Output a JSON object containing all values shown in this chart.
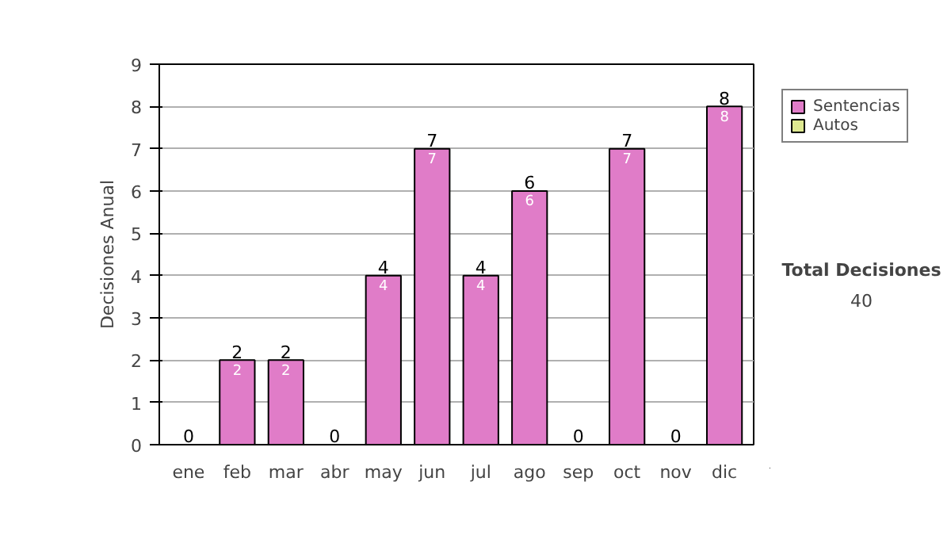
{
  "chart_data": {
    "type": "bar",
    "stacked": true,
    "ylabel": "Decisiones Anual",
    "categories": [
      "ene",
      "feb",
      "mar",
      "abr",
      "may",
      "jun",
      "jul",
      "ago",
      "sep",
      "oct",
      "nov",
      "dic"
    ],
    "series": [
      {
        "name": "Sentencias",
        "color": "#e07cc8",
        "values": [
          0,
          2,
          2,
          0,
          4,
          7,
          4,
          6,
          0,
          7,
          0,
          8
        ],
        "value_labels": [
          null,
          "2",
          "2",
          null,
          "4",
          "7",
          "4",
          "6",
          null,
          "7",
          null,
          "8"
        ]
      },
      {
        "name": "Autos",
        "color": "#dde890",
        "values": [
          0,
          0,
          0,
          0,
          0,
          0,
          0,
          0,
          0,
          0,
          0,
          0
        ]
      }
    ],
    "totals": [
      "0",
      "2",
      "2",
      "0",
      "4",
      "7",
      "4",
      "6",
      "0",
      "7",
      "0",
      "8"
    ],
    "ylim": [
      0,
      9
    ],
    "yticks": [
      0,
      1,
      2,
      3,
      4,
      5,
      6,
      7,
      8,
      9
    ],
    "grid": "y",
    "legend": "right",
    "annotations": [
      "Total Decisiones",
      "40"
    ]
  }
}
